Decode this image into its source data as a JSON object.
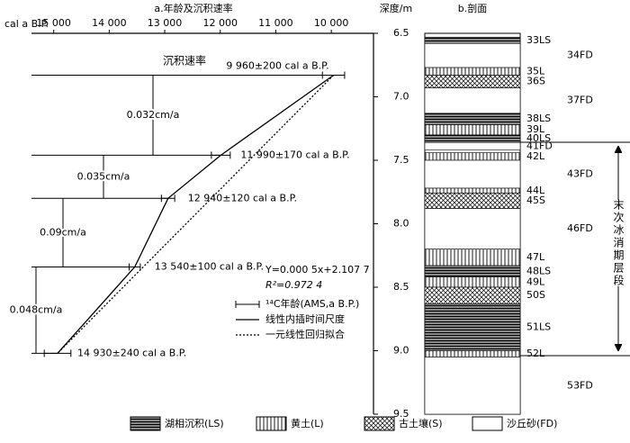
{
  "chart_data": [
    {
      "type": "line",
      "title": "a.年龄及沉积速率",
      "x_label": "cal a B.P.",
      "y_label": "深度/m",
      "annotation": "沉积速率",
      "x": [
        9960,
        11990,
        12940,
        13540,
        14930
      ],
      "x_err": [
        200,
        170,
        120,
        100,
        240
      ],
      "values": [
        6.83,
        7.46,
        7.8,
        8.34,
        9.02
      ],
      "point_labels": [
        "9 960±200 cal a B.P.",
        "11 990±170 cal a B.P.",
        "12 940±120 cal a B.P.",
        "13 540±100 cal a B.P.",
        "14 930±240 cal a B.P."
      ],
      "rate_labels": [
        "0.032cm/a",
        "0.035cm/a",
        "0.09cm/a",
        "0.048cm/a"
      ],
      "xlim": [
        15400,
        9240
      ],
      "xticks": [
        {
          "value": 15000,
          "label": "15 000"
        },
        {
          "value": 14000,
          "label": "14 000"
        },
        {
          "value": 13000,
          "label": "13 000"
        },
        {
          "value": 12000,
          "label": "12 000"
        },
        {
          "value": 11000,
          "label": "11 000"
        },
        {
          "value": 10000,
          "label": "10 000"
        }
      ],
      "ylim": [
        6.5,
        9.5
      ],
      "yticks": [
        6.5,
        {
          "value": 7,
          "label": "7.0"
        },
        7.5,
        {
          "value": 8,
          "label": "8.0"
        },
        8.5,
        {
          "value": 9,
          "label": "9.0"
        },
        9.5
      ],
      "fit_equation": "Y=0.000 5x+2.107 7",
      "fit_r2": "R²=0.972 4",
      "legend": [
        "¹⁴C年龄(AMS,a B.P.)",
        "线性内插时间尺度",
        "一元线性回归拟合"
      ],
      "color": "#000000"
    },
    {
      "type": "column",
      "title": "b.剖面",
      "bracket_label": "末次冰消期层段",
      "layers": [
        {
          "label": "33LS",
          "top": 6.53,
          "bottom": 6.58,
          "pattern": "LS"
        },
        {
          "label": "34FD",
          "top": 6.58,
          "bottom": 6.77,
          "pattern": "FD"
        },
        {
          "label": "35L",
          "top": 6.77,
          "bottom": 6.83,
          "pattern": "L"
        },
        {
          "label": "36S",
          "top": 6.83,
          "bottom": 6.93,
          "pattern": "S"
        },
        {
          "label": "37FD",
          "top": 6.93,
          "bottom": 7.13,
          "pattern": "FD"
        },
        {
          "label": "38LS",
          "top": 7.13,
          "bottom": 7.22,
          "pattern": "LS"
        },
        {
          "label": "39L",
          "top": 7.22,
          "bottom": 7.3,
          "pattern": "L"
        },
        {
          "label": "40LS",
          "top": 7.3,
          "bottom": 7.36,
          "pattern": "LS"
        },
        {
          "label": "41FD",
          "top": 7.36,
          "bottom": 7.42,
          "pattern": "FD"
        },
        {
          "label": "42L",
          "top": 7.44,
          "bottom": 7.5,
          "pattern": "L"
        },
        {
          "label": "43FD",
          "top": 7.5,
          "bottom": 7.72,
          "pattern": "FD"
        },
        {
          "label": "44L",
          "top": 7.72,
          "bottom": 7.76,
          "pattern": "L"
        },
        {
          "label": "45S",
          "top": 7.76,
          "bottom": 7.88,
          "pattern": "S"
        },
        {
          "label": "46FD",
          "top": 7.88,
          "bottom": 8.2,
          "pattern": "FD"
        },
        {
          "label": "47L",
          "top": 8.2,
          "bottom": 8.33,
          "pattern": "L"
        },
        {
          "label": "48LS",
          "top": 8.33,
          "bottom": 8.42,
          "pattern": "LS"
        },
        {
          "label": "49L",
          "top": 8.42,
          "bottom": 8.5,
          "pattern": "L"
        },
        {
          "label": "50S",
          "top": 8.5,
          "bottom": 8.63,
          "pattern": "S"
        },
        {
          "label": "51LS",
          "top": 8.63,
          "bottom": 9.0,
          "pattern": "LS"
        },
        {
          "label": "52L",
          "top": 9.0,
          "bottom": 9.05,
          "pattern": "L"
        },
        {
          "label": "53FD",
          "top": 9.05,
          "bottom": 9.5,
          "pattern": "FD"
        }
      ],
      "legend": [
        {
          "label": "湖相沉积(LS)",
          "pattern": "LS"
        },
        {
          "label": "黄土(L)",
          "pattern": "L"
        },
        {
          "label": "古土壤(S)",
          "pattern": "S"
        },
        {
          "label": "沙丘砂(FD)",
          "pattern": "FD"
        }
      ]
    }
  ]
}
